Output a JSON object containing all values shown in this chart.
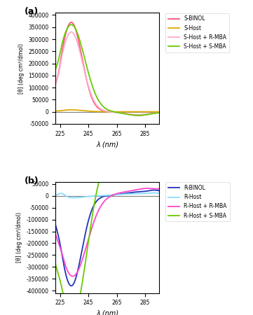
{
  "panel_a": {
    "title": "(a)",
    "xlabel": "λ (nm)",
    "ylabel": "[θ] (deg cm²/dmol)",
    "xlim": [
      222,
      295
    ],
    "ylim": [
      -50000,
      410000
    ],
    "yticks": [
      -50000,
      0,
      50000,
      100000,
      150000,
      200000,
      250000,
      300000,
      350000,
      400000
    ],
    "xticks": [
      225,
      245,
      265,
      285
    ],
    "lines": [
      {
        "label": "S-BINOL",
        "color": "#FF5577",
        "lw": 1.3
      },
      {
        "label": "S-Host",
        "color": "#DDAA00",
        "lw": 1.3
      },
      {
        "label": "S-Host + R-MBA",
        "color": "#FFAACC",
        "lw": 1.3
      },
      {
        "label": "S-Host + S-MBA",
        "color": "#66CC00",
        "lw": 1.3
      }
    ]
  },
  "panel_b": {
    "title": "(b)",
    "xlabel": "λ (nm)",
    "ylabel": "[θ] (deg cm²/dmol)",
    "xlim": [
      222,
      295
    ],
    "ylim": [
      -410000,
      60000
    ],
    "yticks": [
      -400000,
      -350000,
      -300000,
      -250000,
      -200000,
      -150000,
      -100000,
      -50000,
      0,
      50000
    ],
    "xticks": [
      225,
      245,
      265,
      285
    ],
    "lines": [
      {
        "label": "R-BINOL",
        "color": "#2233BB",
        "lw": 1.3
      },
      {
        "label": "R-Host",
        "color": "#88DDFF",
        "lw": 1.3
      },
      {
        "label": "R-Host + R-MBA",
        "color": "#FF44CC",
        "lw": 1.3
      },
      {
        "label": "R-Host + S-MBA",
        "color": "#66CC00",
        "lw": 1.3
      }
    ]
  }
}
